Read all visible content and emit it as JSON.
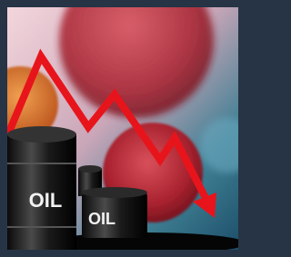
{
  "barrels": {
    "large": {
      "label": "OIL"
    },
    "small": {
      "label": "OIL"
    }
  }
}
